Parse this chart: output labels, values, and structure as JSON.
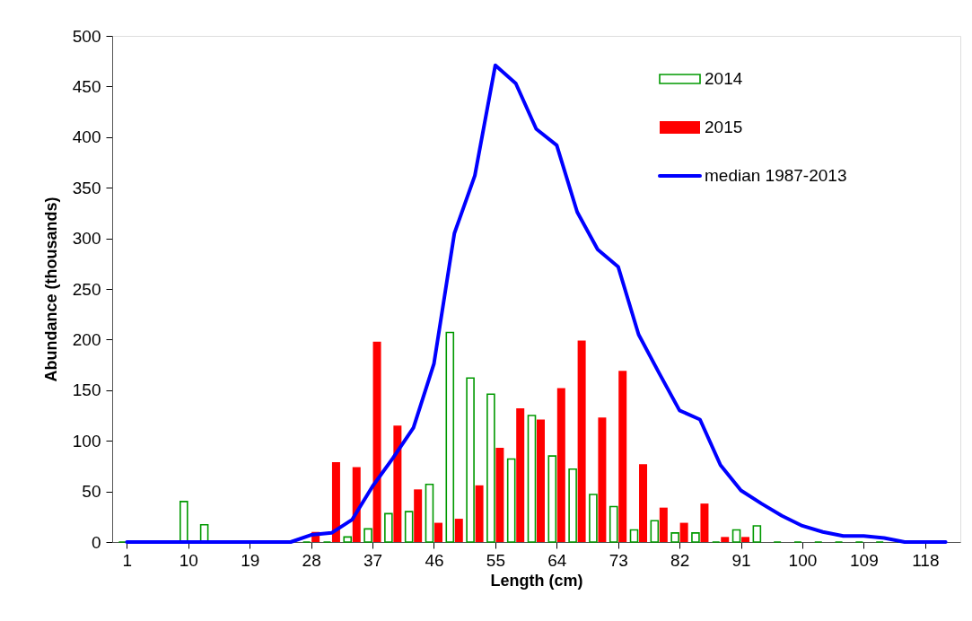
{
  "chart_data": {
    "type": "bar",
    "xlabel": "Length (cm)",
    "ylabel": "Abundance (thousands)",
    "x": [
      1,
      4,
      7,
      10,
      13,
      16,
      19,
      22,
      25,
      28,
      31,
      34,
      37,
      40,
      43,
      46,
      49,
      52,
      55,
      58,
      61,
      64,
      67,
      70,
      73,
      76,
      79,
      82,
      85,
      88,
      91,
      94,
      97,
      100,
      103,
      106,
      109,
      112,
      115,
      118,
      121
    ],
    "series": [
      {
        "name": "2014",
        "color": "#009900",
        "values": [
          0,
          0,
          0,
          40,
          17,
          0,
          0,
          0,
          0,
          0,
          0,
          5,
          13,
          28,
          30,
          57,
          207,
          162,
          146,
          82,
          125,
          85,
          72,
          47,
          35,
          12,
          21,
          9,
          9,
          0,
          12,
          16,
          0,
          0,
          0,
          0,
          0,
          0,
          0,
          0,
          0
        ]
      },
      {
        "name": "2015",
        "color": "#ff0000",
        "values": [
          0,
          0,
          0,
          0,
          0,
          0,
          0,
          0,
          0,
          10,
          79,
          74,
          198,
          115,
          52,
          19,
          23,
          56,
          93,
          132,
          121,
          152,
          199,
          123,
          169,
          77,
          34,
          19,
          38,
          5,
          5,
          0,
          0,
          0,
          0,
          0,
          0,
          0,
          0,
          0,
          0
        ]
      },
      {
        "name": "median 1987-2013",
        "type": "line",
        "color": "#0000ff",
        "values": [
          0,
          0,
          0,
          0,
          0,
          0,
          0,
          0,
          0,
          7,
          9,
          22,
          55,
          83,
          113,
          176,
          305,
          362,
          471,
          453,
          408,
          392,
          326,
          289,
          272,
          205,
          167,
          130,
          121,
          76,
          51,
          38,
          26,
          16,
          10,
          6,
          6,
          4,
          0,
          0,
          0
        ]
      }
    ],
    "xlim": [
      -0.5,
      122.5
    ],
    "xticks": [
      1,
      10,
      19,
      28,
      37,
      46,
      55,
      64,
      73,
      82,
      91,
      100,
      109,
      118
    ],
    "ylim": [
      0,
      500
    ],
    "yticks": [
      0,
      50,
      100,
      150,
      200,
      250,
      300,
      350,
      400,
      450,
      500
    ],
    "grid": false,
    "legend": "top right"
  }
}
